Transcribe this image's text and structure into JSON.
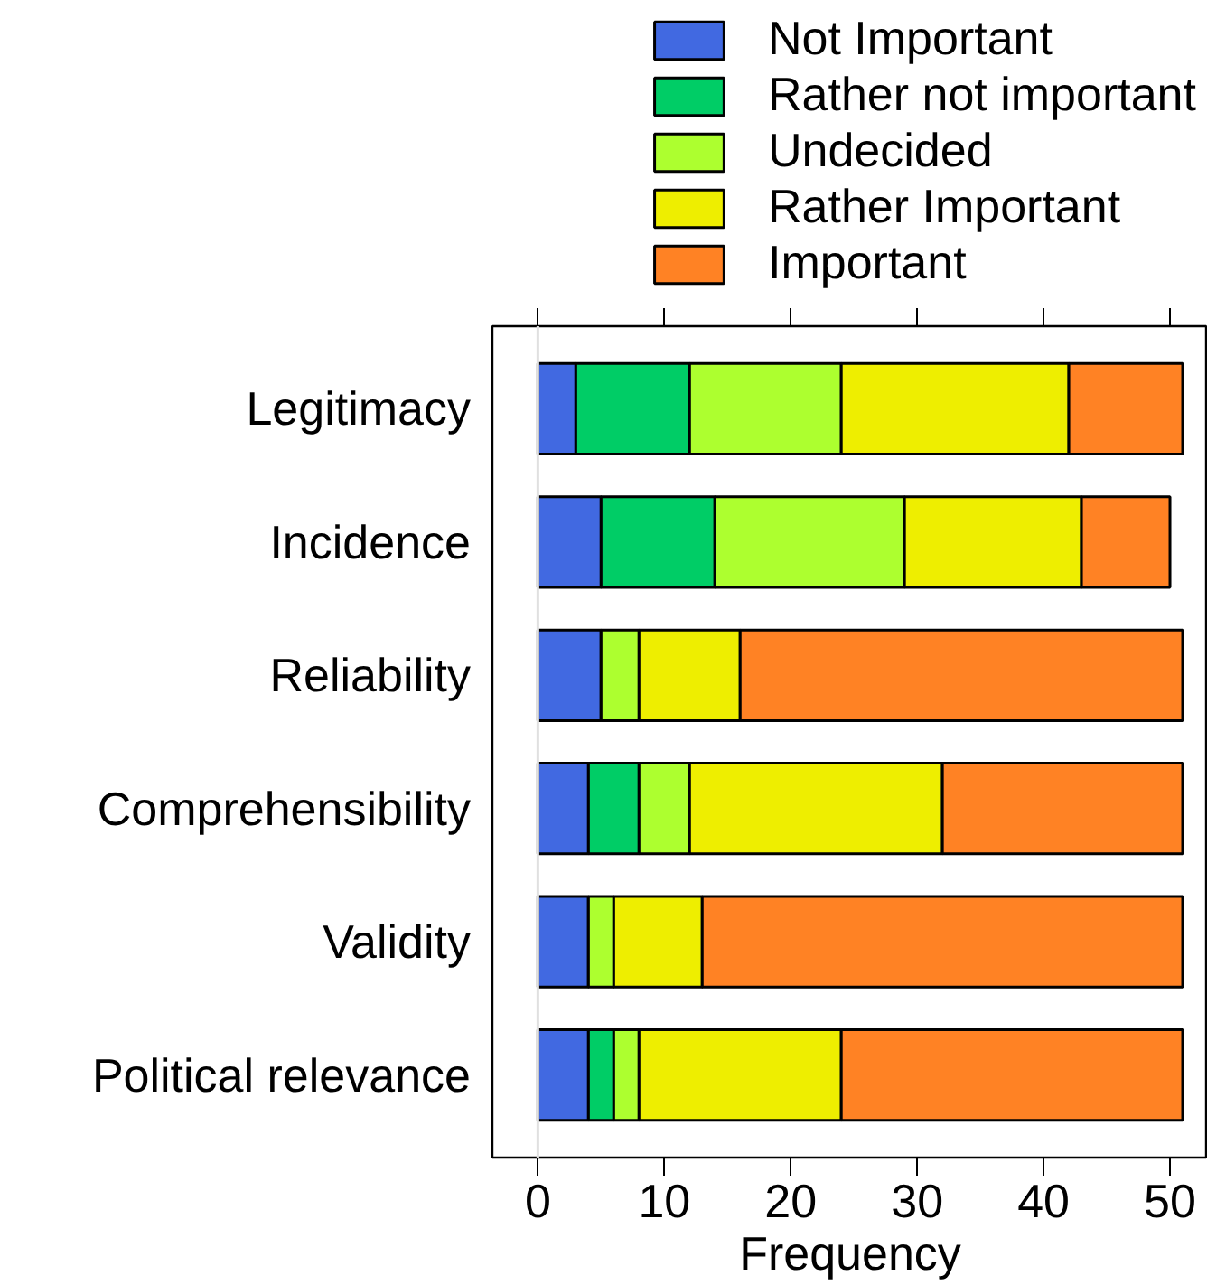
{
  "chart_data": {
    "type": "bar",
    "orientation": "horizontal",
    "stacked": true,
    "xlabel": "Frequency",
    "categories": [
      "Legitimacy",
      "Incidence",
      "Reliability",
      "Comprehensibility",
      "Validity",
      "Political relevance"
    ],
    "series": [
      {
        "name": "Not Important",
        "color": "#4169e1",
        "values": [
          3,
          5,
          5,
          4,
          4,
          4
        ]
      },
      {
        "name": "Rather not important",
        "color": "#00cd66",
        "values": [
          9,
          9,
          0,
          4,
          0,
          2
        ]
      },
      {
        "name": "Undecided",
        "color": "#adff2f",
        "values": [
          12,
          15,
          3,
          4,
          2,
          2
        ]
      },
      {
        "name": "Rather Important",
        "color": "#eeee00",
        "values": [
          18,
          14,
          8,
          20,
          7,
          16
        ]
      },
      {
        "name": "Important",
        "color": "#ff8224",
        "values": [
          9,
          7,
          35,
          19,
          38,
          27
        ]
      }
    ],
    "xlim": [
      -3.6,
      53
    ],
    "xticks": [
      0,
      10,
      20,
      30,
      40,
      50
    ],
    "ref_lines": [
      {
        "axis": "x",
        "value": 0,
        "color": "#e0e0e0"
      }
    ],
    "legend": "top",
    "grid": false
  }
}
